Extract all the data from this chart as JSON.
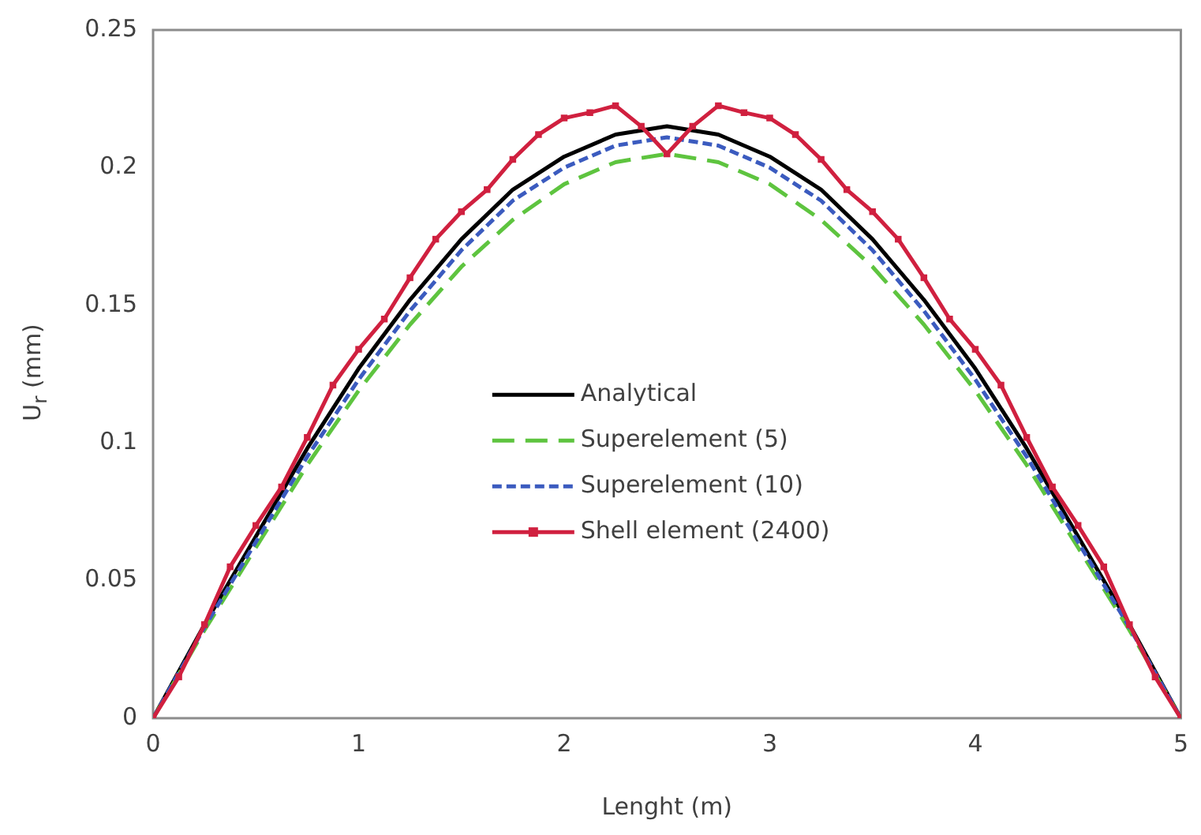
{
  "chart_data": {
    "type": "line",
    "xlabel": "Lenght (m)",
    "ylabel": "U$_{r}$ (mm)",
    "xlim": [
      0,
      5
    ],
    "xticks": [
      0,
      1,
      2,
      3,
      4,
      5
    ],
    "ylim": [
      0,
      0.25
    ],
    "yticks": [
      0,
      0.05,
      0.1,
      0.15,
      0.2,
      0.25
    ],
    "grid": false,
    "legend": "center",
    "series": [
      {
        "name": "Analytical",
        "color": "#000000",
        "line_style": "solid",
        "marker": "none",
        "x": [
          0,
          0.25,
          0.5,
          0.75,
          1,
          1.25,
          1.5,
          1.75,
          2,
          2.25,
          2.5,
          2.75,
          3,
          3.25,
          3.5,
          3.75,
          4,
          4.25,
          4.5,
          4.75,
          5
        ],
        "values": [
          0,
          0.034,
          0.066,
          0.098,
          0.127,
          0.152,
          0.174,
          0.192,
          0.204,
          0.212,
          0.215,
          0.212,
          0.204,
          0.192,
          0.174,
          0.152,
          0.127,
          0.098,
          0.066,
          0.034,
          0
        ]
      },
      {
        "name": "Superelement (5)",
        "color": "#5ec43f",
        "line_style": "dashed",
        "marker": "none",
        "x": [
          0,
          0.25,
          0.5,
          0.75,
          1,
          1.25,
          1.5,
          1.75,
          2,
          2.25,
          2.5,
          2.75,
          3,
          3.25,
          3.5,
          3.75,
          4,
          4.25,
          4.5,
          4.75,
          5
        ],
        "values": [
          0,
          0.032,
          0.062,
          0.092,
          0.119,
          0.143,
          0.164,
          0.181,
          0.194,
          0.202,
          0.205,
          0.202,
          0.194,
          0.181,
          0.164,
          0.143,
          0.119,
          0.092,
          0.062,
          0.032,
          0
        ]
      },
      {
        "name": "Superelement (10)",
        "color": "#3b5bbf",
        "line_style": "dotted",
        "marker": "none",
        "x": [
          0,
          0.25,
          0.5,
          0.75,
          1,
          1.25,
          1.5,
          1.75,
          2,
          2.25,
          2.5,
          2.75,
          3,
          3.25,
          3.5,
          3.75,
          4,
          4.25,
          4.5,
          4.75,
          5
        ],
        "values": [
          0,
          0.033,
          0.064,
          0.095,
          0.123,
          0.148,
          0.17,
          0.188,
          0.2,
          0.208,
          0.211,
          0.208,
          0.2,
          0.188,
          0.17,
          0.148,
          0.123,
          0.095,
          0.064,
          0.033,
          0
        ]
      },
      {
        "name": "Shell element (2400)",
        "color": "#d0203f",
        "line_style": "solid",
        "marker": "square",
        "x": [
          0,
          0.125,
          0.25,
          0.375,
          0.5,
          0.625,
          0.75,
          0.875,
          1,
          1.125,
          1.25,
          1.375,
          1.5,
          1.625,
          1.75,
          1.875,
          2,
          2.125,
          2.25,
          2.375,
          2.5,
          2.625,
          2.75,
          2.875,
          3,
          3.125,
          3.25,
          3.375,
          3.5,
          3.625,
          3.75,
          3.875,
          4,
          4.125,
          4.25,
          4.375,
          4.5,
          4.625,
          4.75,
          4.875,
          5
        ],
        "values": [
          0,
          0.015,
          0.034,
          0.055,
          0.07,
          0.084,
          0.102,
          0.121,
          0.134,
          0.145,
          0.16,
          0.174,
          0.184,
          0.192,
          0.203,
          0.212,
          0.218,
          0.22,
          0.2225,
          0.215,
          0.205,
          0.215,
          0.2225,
          0.22,
          0.218,
          0.212,
          0.203,
          0.192,
          0.184,
          0.174,
          0.16,
          0.145,
          0.134,
          0.121,
          0.102,
          0.084,
          0.07,
          0.055,
          0.034,
          0.015,
          0
        ]
      }
    ]
  }
}
